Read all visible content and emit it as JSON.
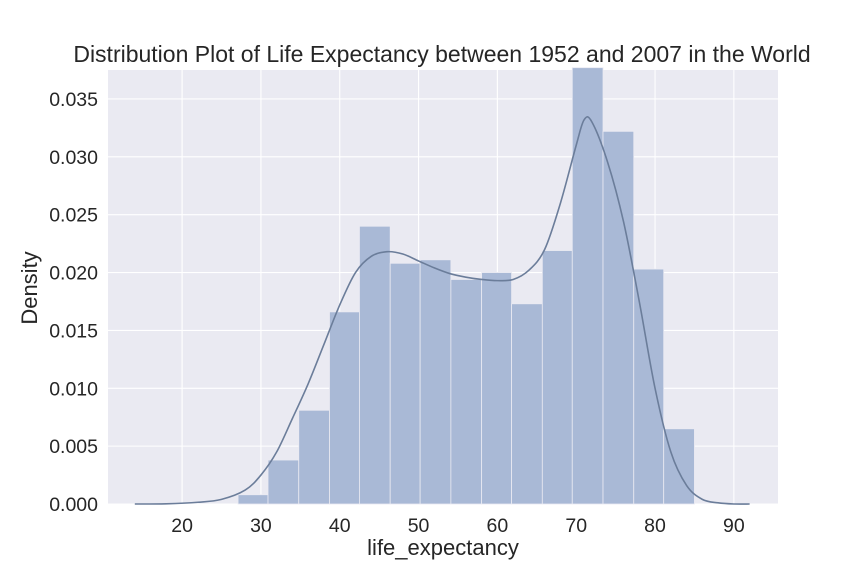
{
  "chart_data": {
    "type": "histogram",
    "title": "Distribution Plot of Life Expectancy between 1952 and 2007 in the World",
    "xlabel": "life_expectancy",
    "ylabel": "Density",
    "xlim": [
      10.6,
      95.6
    ],
    "ylim": [
      0,
      0.0375
    ],
    "xticks": [
      "20",
      "30",
      "40",
      "50",
      "60",
      "70",
      "80",
      "90"
    ],
    "yticks": [
      "0.000",
      "0.005",
      "0.010",
      "0.015",
      "0.020",
      "0.025",
      "0.030",
      "0.035"
    ],
    "grid": true,
    "bins": [
      {
        "x0": 27.1,
        "x1": 30.9,
        "density": 0.0008
      },
      {
        "x0": 30.9,
        "x1": 34.8,
        "density": 0.0038
      },
      {
        "x0": 34.8,
        "x1": 38.7,
        "density": 0.0081
      },
      {
        "x0": 38.7,
        "x1": 42.5,
        "density": 0.0166
      },
      {
        "x0": 42.5,
        "x1": 46.4,
        "density": 0.024
      },
      {
        "x0": 46.4,
        "x1": 50.2,
        "density": 0.0208
      },
      {
        "x0": 50.2,
        "x1": 54.1,
        "density": 0.0211
      },
      {
        "x0": 54.1,
        "x1": 58.0,
        "density": 0.0194
      },
      {
        "x0": 58.0,
        "x1": 61.8,
        "density": 0.02
      },
      {
        "x0": 61.8,
        "x1": 65.7,
        "density": 0.0173
      },
      {
        "x0": 65.7,
        "x1": 69.5,
        "density": 0.0219
      },
      {
        "x0": 69.5,
        "x1": 73.4,
        "density": 0.0377
      },
      {
        "x0": 73.4,
        "x1": 77.3,
        "density": 0.0322
      },
      {
        "x0": 77.3,
        "x1": 81.1,
        "density": 0.0203
      },
      {
        "x0": 81.1,
        "x1": 85.0,
        "density": 0.0065
      }
    ],
    "kde": {
      "x": [
        14,
        18,
        22,
        25,
        28,
        30,
        32,
        34,
        36,
        38,
        40,
        42,
        44,
        46,
        48,
        50,
        52,
        54,
        56,
        58,
        60,
        62,
        64,
        66,
        68,
        70,
        71,
        72,
        74,
        76,
        78,
        80,
        82,
        84,
        86,
        88,
        90,
        92
      ],
      "y": [
        0.0,
        2e-05,
        0.00015,
        0.0004,
        0.0012,
        0.0025,
        0.0045,
        0.0074,
        0.0104,
        0.0138,
        0.0172,
        0.02,
        0.0214,
        0.0218,
        0.0216,
        0.021,
        0.0204,
        0.0199,
        0.0196,
        0.0194,
        0.0193,
        0.0194,
        0.0202,
        0.022,
        0.026,
        0.031,
        0.0332,
        0.033,
        0.0295,
        0.0244,
        0.0175,
        0.01,
        0.0045,
        0.0016,
        0.0004,
        0.0001,
        0.0,
        0.0
      ]
    },
    "colors": {
      "background": "#eaeaf2",
      "grid": "#ffffff",
      "bar": "#a9b9d6",
      "bar_edge": "#eaeaf2",
      "kde": "#6b7d9a"
    }
  }
}
